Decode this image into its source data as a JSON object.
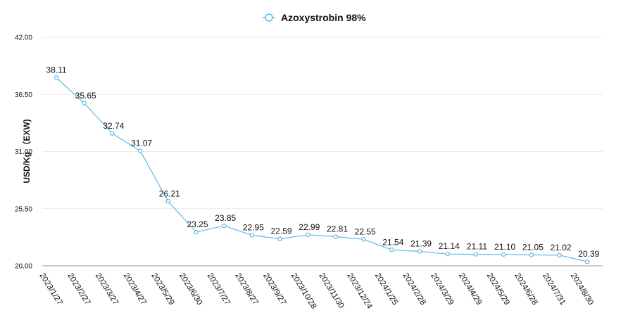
{
  "chart_data": {
    "type": "line",
    "title": "",
    "xlabel": "",
    "ylabel": "USD/Kg （EXW)",
    "ylim": [
      20,
      42
    ],
    "yticks": [
      "20.00",
      "25.50",
      "31.00",
      "36.50",
      "42.00"
    ],
    "grid": true,
    "legend_position": "top-center",
    "categories": [
      "2023/1/27",
      "2023/2/27",
      "2023/3/27",
      "2023/4/27",
      "2023/5/29",
      "2023/6/30",
      "2023/7/27",
      "2023/8/27",
      "2023/9/27",
      "2023/10/28",
      "2023/11/30",
      "2023/12/24",
      "2024/1/25",
      "2024/2/28",
      "2024/3/29",
      "2024/4/29",
      "2024/5/29",
      "2024/6/28",
      "2024/7/31",
      "2024/8/30"
    ],
    "series": [
      {
        "name": "Azoxystrobin 98%",
        "color": "#5BB8E8",
        "values": [
          38.11,
          35.65,
          32.74,
          31.07,
          26.21,
          23.25,
          23.85,
          22.95,
          22.59,
          22.99,
          22.81,
          22.55,
          21.54,
          21.39,
          21.14,
          21.11,
          21.1,
          21.05,
          21.02,
          20.39
        ],
        "labels": [
          "38.11",
          "35.65",
          "32.74",
          "31.07",
          "26.21",
          "23.25",
          "23.85",
          "22.95",
          "22.59",
          "22.99",
          "22.81",
          "22.55",
          "21.54",
          "21.39",
          "21.14",
          "21.11",
          "21.10",
          "21.05",
          "21.02",
          "20.39"
        ]
      }
    ]
  }
}
